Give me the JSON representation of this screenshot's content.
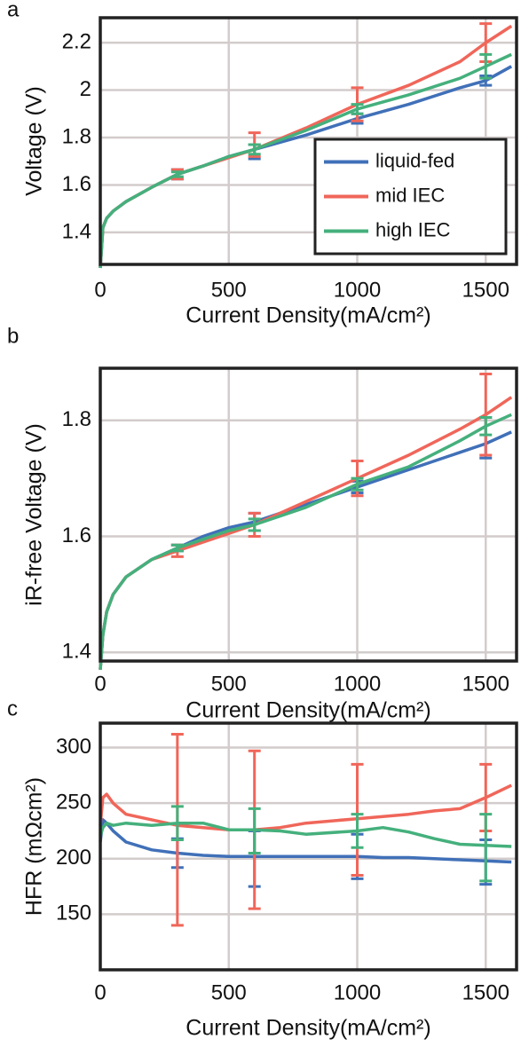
{
  "chart_data": [
    {
      "type": "line",
      "label": "a",
      "x_label": "Current Density(mA/cm²)",
      "y_label": "Voltage (V)",
      "xlim": [
        0,
        1620
      ],
      "ylim": [
        1.265,
        2.305
      ],
      "xticks": [
        0,
        500,
        1000,
        1500
      ],
      "yticks": [
        1.4,
        1.6,
        1.8,
        2,
        2.2
      ],
      "grid": true,
      "legend": "lower right",
      "x": [
        0,
        10,
        25,
        50,
        100,
        200,
        300,
        400,
        500,
        600,
        800,
        1000,
        1200,
        1400,
        1500,
        1600
      ],
      "series": [
        {
          "name": "liquid-fed",
          "color": "#4070b8",
          "values": [
            1.25,
            1.42,
            1.46,
            1.49,
            1.53,
            1.59,
            1.645,
            1.68,
            1.72,
            1.75,
            1.81,
            1.88,
            1.94,
            2.01,
            2.04,
            2.1
          ],
          "error_bars": [
            {
              "x": 300,
              "y": 1.645,
              "err": 0.02
            },
            {
              "x": 600,
              "y": 1.74,
              "err": 0.03
            },
            {
              "x": 1000,
              "y": 1.88,
              "err": 0.02
            },
            {
              "x": 1500,
              "y": 2.04,
              "err": 0.02
            }
          ]
        },
        {
          "name": "mid IEC",
          "color": "#f0665a",
          "values": [
            1.25,
            1.42,
            1.46,
            1.49,
            1.53,
            1.59,
            1.645,
            1.68,
            1.715,
            1.75,
            1.84,
            1.94,
            2.02,
            2.12,
            2.2,
            2.27
          ],
          "error_bars": [
            {
              "x": 300,
              "y": 1.645,
              "err": 0.02
            },
            {
              "x": 600,
              "y": 1.77,
              "err": 0.05
            },
            {
              "x": 1000,
              "y": 1.94,
              "err": 0.07
            },
            {
              "x": 1500,
              "y": 2.2,
              "err": 0.08
            }
          ]
        },
        {
          "name": "high IEC",
          "color": "#45b07c",
          "values": [
            1.25,
            1.42,
            1.46,
            1.49,
            1.53,
            1.59,
            1.645,
            1.68,
            1.72,
            1.75,
            1.83,
            1.92,
            1.98,
            2.05,
            2.1,
            2.15
          ],
          "error_bars": [
            {
              "x": 300,
              "y": 1.645,
              "err": 0.01
            },
            {
              "x": 600,
              "y": 1.75,
              "err": 0.02
            },
            {
              "x": 1000,
              "y": 1.92,
              "err": 0.02
            },
            {
              "x": 1500,
              "y": 2.1,
              "err": 0.05
            }
          ]
        }
      ]
    },
    {
      "type": "line",
      "label": "b",
      "x_label": "Current Density(mA/cm²)",
      "y_label": "iR-free Voltage (V)",
      "xlim": [
        0,
        1620
      ],
      "ylim": [
        1.385,
        1.89
      ],
      "xticks": [
        0,
        500,
        1000,
        1500
      ],
      "yticks": [
        1.4,
        1.6,
        1.8
      ],
      "grid": true,
      "x": [
        0,
        10,
        25,
        50,
        100,
        200,
        300,
        400,
        500,
        600,
        800,
        1000,
        1200,
        1400,
        1500,
        1600
      ],
      "series": [
        {
          "color": "#4070b8",
          "values": [
            1.37,
            1.43,
            1.47,
            1.5,
            1.53,
            1.56,
            1.58,
            1.6,
            1.615,
            1.625,
            1.655,
            1.685,
            1.715,
            1.745,
            1.76,
            1.78
          ],
          "error_bars": [
            {
              "x": 300,
              "y": 1.58,
              "err": 0.005
            },
            {
              "x": 600,
              "y": 1.625,
              "err": 0.015
            },
            {
              "x": 1000,
              "y": 1.685,
              "err": 0.01
            },
            {
              "x": 1500,
              "y": 1.77,
              "err": 0.035
            }
          ]
        },
        {
          "color": "#f0665a",
          "values": [
            1.37,
            1.43,
            1.47,
            1.5,
            1.53,
            1.56,
            1.575,
            1.59,
            1.605,
            1.62,
            1.66,
            1.7,
            1.74,
            1.785,
            1.81,
            1.84
          ],
          "error_bars": [
            {
              "x": 300,
              "y": 1.575,
              "err": 0.01
            },
            {
              "x": 600,
              "y": 1.62,
              "err": 0.02
            },
            {
              "x": 1000,
              "y": 1.7,
              "err": 0.03
            },
            {
              "x": 1500,
              "y": 1.81,
              "err": 0.07
            }
          ]
        },
        {
          "color": "#45b07c",
          "values": [
            1.37,
            1.43,
            1.47,
            1.5,
            1.53,
            1.56,
            1.58,
            1.595,
            1.61,
            1.62,
            1.65,
            1.69,
            1.72,
            1.765,
            1.79,
            1.81
          ],
          "error_bars": [
            {
              "x": 300,
              "y": 1.58,
              "err": 0.005
            },
            {
              "x": 600,
              "y": 1.62,
              "err": 0.01
            },
            {
              "x": 1000,
              "y": 1.69,
              "err": 0.01
            },
            {
              "x": 1500,
              "y": 1.79,
              "err": 0.015
            }
          ]
        }
      ]
    },
    {
      "type": "line",
      "label": "c",
      "x_label": "Current Density(mA/cm²)",
      "y_label": "HFR (mΩcm²)",
      "xlim": [
        0,
        1620
      ],
      "ylim": [
        100,
        322
      ],
      "xticks": [
        0,
        500,
        1000,
        1500
      ],
      "yticks": [
        150,
        200,
        250,
        300
      ],
      "grid": true,
      "x": [
        0,
        10,
        25,
        50,
        100,
        200,
        300,
        400,
        500,
        600,
        700,
        800,
        1000,
        1100,
        1200,
        1300,
        1400,
        1500,
        1600
      ],
      "series": [
        {
          "color": "#4070b8",
          "values": [
            215,
            235,
            232,
            225,
            215,
            208,
            205,
            203,
            202,
            202,
            202,
            202,
            202,
            201,
            201,
            200,
            199,
            198,
            197
          ],
          "error_bars": [
            {
              "x": 300,
              "y": 205,
              "err": 13
            },
            {
              "x": 600,
              "y": 200,
              "err": 25
            },
            {
              "x": 1000,
              "y": 202,
              "err": 20
            },
            {
              "x": 1500,
              "y": 197,
              "err": 20
            }
          ]
        },
        {
          "color": "#f0665a",
          "values": [
            230,
            255,
            258,
            250,
            240,
            235,
            230,
            228,
            226,
            226,
            228,
            232,
            236,
            238,
            240,
            243,
            245,
            255,
            266
          ],
          "error_bars": [
            {
              "x": 300,
              "y": 226,
              "err": 86
            },
            {
              "x": 600,
              "y": 226,
              "err": 71
            },
            {
              "x": 1000,
              "y": 235,
              "err": 50
            },
            {
              "x": 1500,
              "y": 255,
              "err": 30
            }
          ]
        },
        {
          "color": "#45b07c",
          "values": [
            220,
            228,
            232,
            230,
            232,
            230,
            232,
            232,
            226,
            226,
            225,
            222,
            225,
            228,
            224,
            218,
            213,
            212,
            211
          ],
          "error_bars": [
            {
              "x": 300,
              "y": 232,
              "err": 15
            },
            {
              "x": 600,
              "y": 225,
              "err": 20
            },
            {
              "x": 1000,
              "y": 225,
              "err": 15
            },
            {
              "x": 1500,
              "y": 210,
              "err": 30
            }
          ]
        }
      ]
    }
  ]
}
